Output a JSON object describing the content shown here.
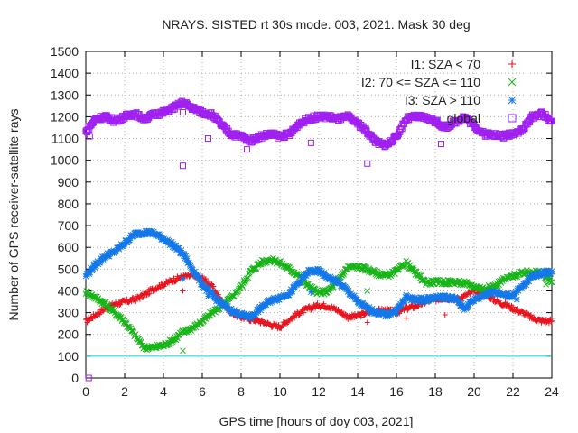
{
  "chart_data": {
    "type": "scatter",
    "title": "NRAYS. SISTED rt 30s mode. 003, 2021. Mask 30 deg",
    "xlabel": "GPS time [hours of doy 003, 2021]",
    "ylabel": "Number of GPS receiver-satellite rays",
    "xlim": [
      0,
      24
    ],
    "ylim": [
      0,
      1500
    ],
    "xticks": [
      0,
      2,
      4,
      6,
      8,
      10,
      12,
      14,
      16,
      18,
      20,
      22,
      24
    ],
    "yticks": [
      0,
      100,
      200,
      300,
      400,
      500,
      600,
      700,
      800,
      900,
      1000,
      1100,
      1200,
      1300,
      1400,
      1500
    ],
    "grid": true,
    "legend_position": "top-right",
    "reference_line": {
      "y": 100,
      "color": "#00e0e0"
    },
    "series": [
      {
        "name": "I1: SZA < 70",
        "color": "#e8141e",
        "marker": "plus",
        "points": [
          [
            0,
            260
          ],
          [
            0.5,
            290
          ],
          [
            1,
            320
          ],
          [
            1.5,
            340
          ],
          [
            2,
            350
          ],
          [
            2.5,
            360
          ],
          [
            3,
            380
          ],
          [
            3.5,
            410
          ],
          [
            4,
            430
          ],
          [
            4.5,
            450
          ],
          [
            5,
            465
          ],
          [
            5.5,
            470
          ],
          [
            6,
            460
          ],
          [
            6.5,
            420
          ],
          [
            7,
            350
          ],
          [
            7.5,
            300
          ],
          [
            8,
            280
          ],
          [
            8.5,
            270
          ],
          [
            9,
            260
          ],
          [
            9.5,
            245
          ],
          [
            10,
            235
          ],
          [
            10.5,
            270
          ],
          [
            11,
            300
          ],
          [
            11.5,
            320
          ],
          [
            12,
            335
          ],
          [
            12.5,
            330
          ],
          [
            13,
            310
          ],
          [
            13.5,
            280
          ],
          [
            14,
            285
          ],
          [
            14.5,
            300
          ],
          [
            15,
            310
          ],
          [
            15.5,
            310
          ],
          [
            16,
            300
          ],
          [
            16.5,
            320
          ],
          [
            17,
            330
          ],
          [
            17.5,
            350
          ],
          [
            18,
            360
          ],
          [
            18.5,
            370
          ],
          [
            19,
            360
          ],
          [
            19.5,
            375
          ],
          [
            20,
            400
          ],
          [
            20.5,
            395
          ],
          [
            21,
            360
          ],
          [
            21.5,
            340
          ],
          [
            22,
            320
          ],
          [
            22.5,
            300
          ],
          [
            23,
            275
          ],
          [
            23.5,
            262
          ],
          [
            24,
            262
          ]
        ],
        "outliers": [
          [
            5,
            400
          ],
          [
            14.5,
            255
          ],
          [
            16.5,
            275
          ],
          [
            18.5,
            290
          ],
          [
            23.5,
            270
          ]
        ]
      },
      {
        "name": "I2: 70 <= SZA <= 110",
        "color": "#18b418",
        "marker": "cross",
        "points": [
          [
            0,
            395
          ],
          [
            0.5,
            370
          ],
          [
            1,
            340
          ],
          [
            1.5,
            300
          ],
          [
            2,
            260
          ],
          [
            2.5,
            200
          ],
          [
            3,
            140
          ],
          [
            3.5,
            140
          ],
          [
            4,
            150
          ],
          [
            4.5,
            175
          ],
          [
            5,
            210
          ],
          [
            5.5,
            230
          ],
          [
            6,
            260
          ],
          [
            6.5,
            300
          ],
          [
            7,
            330
          ],
          [
            7.5,
            370
          ],
          [
            8,
            420
          ],
          [
            8.5,
            490
          ],
          [
            9,
            530
          ],
          [
            9.5,
            545
          ],
          [
            10,
            530
          ],
          [
            10.5,
            500
          ],
          [
            11,
            470
          ],
          [
            11.5,
            420
          ],
          [
            12,
            390
          ],
          [
            12.5,
            400
          ],
          [
            13,
            450
          ],
          [
            13.5,
            510
          ],
          [
            14,
            510
          ],
          [
            14.5,
            500
          ],
          [
            15,
            480
          ],
          [
            15.5,
            470
          ],
          [
            16,
            490
          ],
          [
            16.5,
            530
          ],
          [
            17,
            480
          ],
          [
            17.5,
            440
          ],
          [
            18,
            440
          ],
          [
            18.5,
            440
          ],
          [
            19,
            440
          ],
          [
            19.5,
            435
          ],
          [
            20,
            420
          ],
          [
            20.5,
            410
          ],
          [
            21,
            420
          ],
          [
            21.5,
            450
          ],
          [
            22,
            470
          ],
          [
            22.5,
            480
          ],
          [
            23,
            490
          ],
          [
            23.5,
            480
          ],
          [
            24,
            440
          ]
        ],
        "outliers": [
          [
            5,
            125
          ],
          [
            11.7,
            390
          ],
          [
            14.5,
            400
          ],
          [
            23.7,
            430
          ]
        ]
      },
      {
        "name": "I3: SZA > 110",
        "color": "#1478e8",
        "marker": "star",
        "points": [
          [
            0,
            470
          ],
          [
            0.5,
            520
          ],
          [
            1,
            560
          ],
          [
            1.5,
            580
          ],
          [
            2,
            620
          ],
          [
            2.5,
            660
          ],
          [
            3,
            670
          ],
          [
            3.5,
            665
          ],
          [
            4,
            640
          ],
          [
            4.5,
            610
          ],
          [
            5,
            570
          ],
          [
            5.5,
            500
          ],
          [
            6,
            430
          ],
          [
            6.5,
            380
          ],
          [
            7,
            340
          ],
          [
            7.5,
            310
          ],
          [
            8,
            290
          ],
          [
            8.5,
            280
          ],
          [
            9,
            320
          ],
          [
            9.5,
            355
          ],
          [
            10,
            370
          ],
          [
            10.5,
            390
          ],
          [
            11,
            440
          ],
          [
            11.5,
            490
          ],
          [
            12,
            490
          ],
          [
            12.5,
            460
          ],
          [
            13,
            440
          ],
          [
            13.5,
            400
          ],
          [
            14,
            350
          ],
          [
            14.5,
            320
          ],
          [
            15,
            300
          ],
          [
            15.5,
            290
          ],
          [
            16,
            310
          ],
          [
            16.5,
            370
          ],
          [
            17,
            360
          ],
          [
            17.5,
            360
          ],
          [
            18,
            370
          ],
          [
            18.5,
            370
          ],
          [
            19,
            365
          ],
          [
            19.5,
            320
          ],
          [
            20,
            360
          ],
          [
            20.5,
            380
          ],
          [
            21,
            400
          ],
          [
            21.5,
            380
          ],
          [
            22,
            380
          ],
          [
            22.5,
            420
          ],
          [
            23,
            470
          ],
          [
            23.5,
            480
          ],
          [
            24,
            490
          ]
        ],
        "outliers": [
          [
            5,
            455
          ],
          [
            6.3,
            375
          ],
          [
            11.6,
            395
          ],
          [
            22.2,
            360
          ]
        ]
      },
      {
        "name": "global",
        "color": "#a020f0",
        "marker": "square",
        "points": [
          [
            0,
            1130
          ],
          [
            0.5,
            1190
          ],
          [
            1,
            1200
          ],
          [
            1.5,
            1180
          ],
          [
            2,
            1200
          ],
          [
            2.5,
            1215
          ],
          [
            3,
            1190
          ],
          [
            3.5,
            1210
          ],
          [
            4,
            1220
          ],
          [
            4.5,
            1240
          ],
          [
            5,
            1265
          ],
          [
            5.5,
            1240
          ],
          [
            6,
            1220
          ],
          [
            6.5,
            1210
          ],
          [
            7,
            1160
          ],
          [
            7.5,
            1120
          ],
          [
            8,
            1110
          ],
          [
            8.5,
            1090
          ],
          [
            9,
            1110
          ],
          [
            9.5,
            1120
          ],
          [
            10,
            1110
          ],
          [
            10.5,
            1120
          ],
          [
            11,
            1170
          ],
          [
            11.5,
            1190
          ],
          [
            12,
            1200
          ],
          [
            12.5,
            1200
          ],
          [
            13,
            1190
          ],
          [
            13.5,
            1200
          ],
          [
            14,
            1170
          ],
          [
            14.5,
            1130
          ],
          [
            15,
            1080
          ],
          [
            15.5,
            1070
          ],
          [
            16,
            1110
          ],
          [
            16.5,
            1190
          ],
          [
            17,
            1200
          ],
          [
            17.5,
            1195
          ],
          [
            18,
            1180
          ],
          [
            18.5,
            1150
          ],
          [
            19,
            1175
          ],
          [
            19.5,
            1200
          ],
          [
            20,
            1160
          ],
          [
            20.5,
            1120
          ],
          [
            21,
            1120
          ],
          [
            21.5,
            1110
          ],
          [
            22,
            1125
          ],
          [
            22.5,
            1140
          ],
          [
            23,
            1200
          ],
          [
            23.5,
            1215
          ],
          [
            24,
            1180
          ]
        ],
        "outliers": [
          [
            0.2,
            1110
          ],
          [
            5,
            975
          ],
          [
            5,
            1220
          ],
          [
            6.3,
            1100
          ],
          [
            8.3,
            1050
          ],
          [
            11.6,
            1080
          ],
          [
            14.5,
            985
          ],
          [
            18.3,
            1075
          ]
        ]
      }
    ],
    "zero_point": [
      0.15,
      0
    ]
  }
}
